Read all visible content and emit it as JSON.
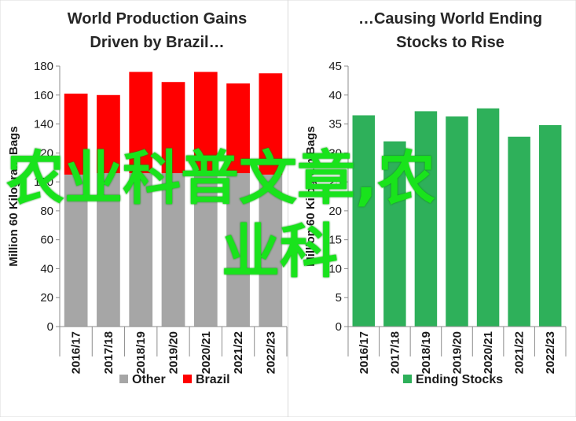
{
  "chart_data": [
    {
      "type": "bar",
      "stacked": true,
      "title_lines": [
        "World Production Gains",
        "Driven by Brazil…"
      ],
      "xlabel": "",
      "ylabel": "Million 60 Kilogram Bags",
      "ylim": [
        0,
        180
      ],
      "yticks": [
        0,
        20,
        40,
        60,
        80,
        100,
        120,
        140,
        160,
        180
      ],
      "categories": [
        "2016/17",
        "2017/18",
        "2018/19",
        "2019/20",
        "2020/21",
        "2021/22",
        "2022/23"
      ],
      "series": [
        {
          "name": "Other",
          "color": "#a6a6a6",
          "values": [
            105,
            106,
            106,
            106,
            106,
            106,
            105
          ]
        },
        {
          "name": "Brazil",
          "color": "#ff0000",
          "values": [
            56,
            54,
            70,
            63,
            70,
            62,
            70
          ]
        }
      ],
      "legend": "bottom",
      "grid": false
    },
    {
      "type": "bar",
      "title_lines": [
        "…Causing World Ending",
        "Stocks to Rise"
      ],
      "xlabel": "",
      "ylabel": "Million 60 Kilogram Bags",
      "ylim": [
        0,
        45
      ],
      "yticks": [
        0,
        5,
        10,
        15,
        20,
        25,
        30,
        35,
        40,
        45
      ],
      "categories": [
        "2016/17",
        "2017/18",
        "2018/19",
        "2019/20",
        "2020/21",
        "2021/22",
        "2022/23"
      ],
      "series": [
        {
          "name": "Ending Stocks",
          "color": "#2eb05a",
          "values": [
            36.5,
            32.0,
            37.2,
            36.3,
            37.7,
            32.8,
            34.8
          ]
        }
      ],
      "legend": "bottom",
      "grid": false
    }
  ],
  "watermark": {
    "line1": "农业科普文章,农",
    "line2": "业科",
    "color": "#19e31c"
  }
}
